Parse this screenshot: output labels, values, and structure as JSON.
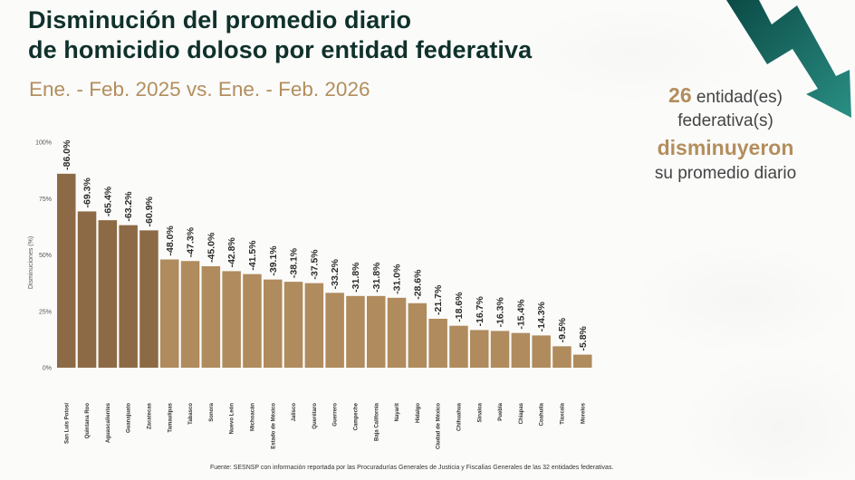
{
  "header": {
    "title_line1": "Disminución del promedio diario",
    "title_line2": "de homicidio doloso por entidad federativa",
    "subtitle": "Ene. - Feb. 2025 vs. Ene. - Feb. 2026"
  },
  "callout": {
    "count": "26",
    "line1_rest": " entidad(es)",
    "line2": "federativa(s)",
    "verb": "disminuyeron",
    "line4": "su promedio diario"
  },
  "decor": {
    "arrow_icon": "trend-down-arrow-icon",
    "arrow_color_dark": "#0b4a45",
    "arrow_color_light": "#2a8a80"
  },
  "colors": {
    "title": "#10312b",
    "accent_gold": "#b38e5d",
    "bar_top5": "#8c6a45",
    "bar_rest": "#b08b5e"
  },
  "source": "Fuente: SESNSP con información reportada por las Procuradurías Generales de Justicia y Fiscalías Generales de las 32 entidades federativas.",
  "chart_data": {
    "type": "bar",
    "title": "Disminución del promedio diario de homicidio doloso por entidad federativa",
    "subtitle": "Ene. - Feb. 2025 vs. Ene. - Feb. 2026",
    "xlabel": "",
    "ylabel": "Disminuciones (%)",
    "ylim": [
      0,
      100
    ],
    "yticks": [
      "0%",
      "25%",
      "50%",
      "75%",
      "100%"
    ],
    "ytick_values": [
      0,
      25,
      50,
      75,
      100
    ],
    "grid": false,
    "legend": "none",
    "categories": [
      "San Luis Potosí",
      "Quintana Roo",
      "Aguascalientes",
      "Guanajuato",
      "Zacatecas",
      "Tamaulipas",
      "Tabasco",
      "Sonora",
      "Nuevo León",
      "Michoacán",
      "Estado de México",
      "Jalisco",
      "Querétaro",
      "Guerrero",
      "Campeche",
      "Baja California",
      "Nayarit",
      "Hidalgo",
      "Ciudad de México",
      "Chihuahua",
      "Sinaloa",
      "Puebla",
      "Chiapas",
      "Coahuila",
      "Tlaxcala",
      "Morelos"
    ],
    "values": [
      86.0,
      69.3,
      65.4,
      63.2,
      60.9,
      48.0,
      47.3,
      45.0,
      42.8,
      41.5,
      39.1,
      38.1,
      37.5,
      33.2,
      31.8,
      31.8,
      31.0,
      28.6,
      21.7,
      18.6,
      16.7,
      16.3,
      15.4,
      14.3,
      9.5,
      5.8
    ],
    "labels": [
      "-86.0%",
      "-69.3%",
      "-65.4%",
      "-63.2%",
      "-60.9%",
      "-48.0%",
      "-47.3%",
      "-45.0%",
      "-42.8%",
      "-41.5%",
      "-39.1%",
      "-38.1%",
      "-37.5%",
      "-33.2%",
      "-31.8%",
      "-31.8%",
      "-31.0%",
      "-28.6%",
      "-21.7%",
      "-18.6%",
      "-16.7%",
      "-16.3%",
      "-15.4%",
      "-14.3%",
      "-9.5%",
      "-5.8%"
    ],
    "highlight_count": 5
  }
}
